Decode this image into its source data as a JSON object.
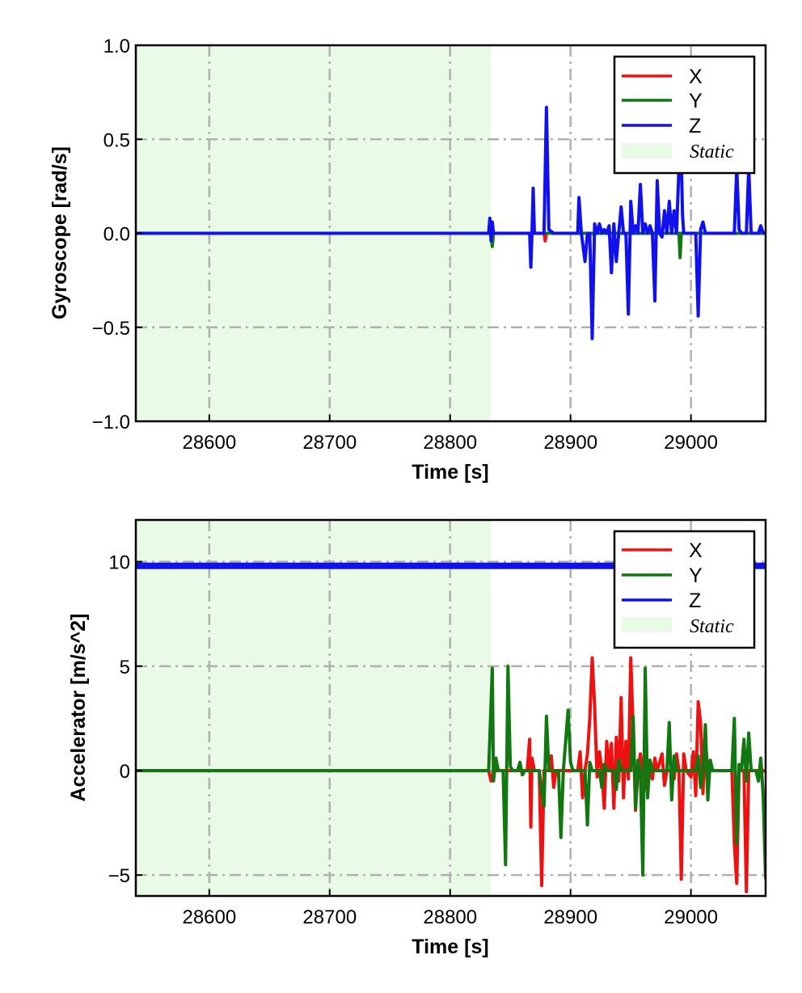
{
  "colors": {
    "X": "#ee1111",
    "Y": "#117711",
    "Z": "#1111ee",
    "static_fill": "#e9fbe6",
    "grid": "#b0b0b0"
  },
  "chart_data": [
    {
      "type": "line",
      "xlabel": "Time [s]",
      "ylabel": "Gyroscope [rad/s]",
      "xlim": [
        28539,
        29062
      ],
      "ylim": [
        -1.0,
        1.0
      ],
      "xticks": [
        28600,
        28700,
        28800,
        28900,
        29000
      ],
      "xtick_labels": [
        "28600",
        "28700",
        "28800",
        "28900",
        "29000"
      ],
      "yticks": [
        1.0,
        0.5,
        0.0,
        -0.5,
        -1.0
      ],
      "ytick_labels": [
        "1.0",
        "0.5",
        "0.0",
        "−0.5",
        "−1.0"
      ],
      "grid": true,
      "legend_position": "top-right",
      "static_region": {
        "label": "Static",
        "x": [
          28539,
          28834
        ]
      },
      "series": [
        {
          "name": "X",
          "points": [
            [
              28539,
              0
            ],
            [
              28833,
              0
            ],
            [
              28834,
              0.03
            ],
            [
              28835,
              -0.05
            ],
            [
              28836,
              0
            ],
            [
              28878,
              0
            ],
            [
              28879,
              -0.04
            ],
            [
              28880,
              0
            ],
            [
              29062,
              0
            ]
          ]
        },
        {
          "name": "Y",
          "points": [
            [
              28539,
              0
            ],
            [
              28834,
              0
            ],
            [
              28835,
              -0.07
            ],
            [
              28836,
              0
            ],
            [
              28990,
              0
            ],
            [
              28991,
              -0.13
            ],
            [
              28992,
              0
            ],
            [
              29062,
              0
            ]
          ]
        },
        {
          "name": "Z",
          "points": [
            [
              28539,
              0
            ],
            [
              28832,
              0
            ],
            [
              28833,
              0.08
            ],
            [
              28834,
              -0.04
            ],
            [
              28835,
              0.06
            ],
            [
              28836,
              0
            ],
            [
              28866,
              0
            ],
            [
              28867,
              -0.18
            ],
            [
              28868,
              0
            ],
            [
              28869,
              0.24
            ],
            [
              28870,
              0
            ],
            [
              28878,
              0
            ],
            [
              28880,
              0.67
            ],
            [
              28882,
              0.02
            ],
            [
              28886,
              0
            ],
            [
              28906,
              0
            ],
            [
              28907,
              0.19
            ],
            [
              28909,
              0
            ],
            [
              28912,
              -0.15
            ],
            [
              28914,
              0
            ],
            [
              28916,
              0
            ],
            [
              28918,
              -0.56
            ],
            [
              28920,
              0.05
            ],
            [
              28922,
              0
            ],
            [
              28924,
              0.05
            ],
            [
              28926,
              0
            ],
            [
              28928,
              0.02
            ],
            [
              28930,
              0
            ],
            [
              28932,
              0.04
            ],
            [
              28934,
              -0.21
            ],
            [
              28936,
              0.05
            ],
            [
              28938,
              -0.15
            ],
            [
              28940,
              0
            ],
            [
              28942,
              0.14
            ],
            [
              28944,
              0
            ],
            [
              28946,
              0
            ],
            [
              28948,
              -0.43
            ],
            [
              28950,
              0.17
            ],
            [
              28952,
              0
            ],
            [
              28954,
              0.04
            ],
            [
              28956,
              0
            ],
            [
              28958,
              0.26
            ],
            [
              28960,
              0
            ],
            [
              28962,
              0.05
            ],
            [
              28964,
              0
            ],
            [
              28966,
              0.04
            ],
            [
              28968,
              0
            ],
            [
              28970,
              -0.36
            ],
            [
              28972,
              0.28
            ],
            [
              28974,
              0
            ],
            [
              28976,
              -0.02
            ],
            [
              28978,
              0.12
            ],
            [
              28980,
              0
            ],
            [
              28982,
              0.17
            ],
            [
              28984,
              0
            ],
            [
              28986,
              0.12
            ],
            [
              28988,
              0
            ],
            [
              28990,
              0.35
            ],
            [
              28992,
              0.4
            ],
            [
              28993,
              0.1
            ],
            [
              28994,
              0
            ],
            [
              29002,
              0
            ],
            [
              29004,
              0
            ],
            [
              29006,
              -0.44
            ],
            [
              29008,
              0.02
            ],
            [
              29010,
              0.06
            ],
            [
              29012,
              0
            ],
            [
              29036,
              0
            ],
            [
              29038,
              0.35
            ],
            [
              29040,
              0.02
            ],
            [
              29042,
              0
            ],
            [
              29046,
              0
            ],
            [
              29048,
              0.35
            ],
            [
              29050,
              0
            ],
            [
              29056,
              0
            ],
            [
              29058,
              0.04
            ],
            [
              29060,
              0
            ],
            [
              29062,
              0
            ]
          ]
        }
      ]
    },
    {
      "type": "line",
      "xlabel": "Time [s]",
      "ylabel": "Accelerator [m/s^2]",
      "xlim": [
        28539,
        29062
      ],
      "ylim": [
        -6,
        12
      ],
      "xticks": [
        28600,
        28700,
        28800,
        28900,
        29000
      ],
      "xtick_labels": [
        "28600",
        "28700",
        "28800",
        "28900",
        "29000"
      ],
      "yticks": [
        10,
        5,
        0,
        -5
      ],
      "ytick_labels": [
        "10",
        "5",
        "0",
        "−5"
      ],
      "grid": true,
      "legend_position": "top-right",
      "static_region": {
        "label": "Static",
        "x": [
          28539,
          28834
        ]
      },
      "series": [
        {
          "name": "X",
          "points": [
            [
              28539,
              0
            ],
            [
              28832,
              0
            ],
            [
              28834,
              -0.5
            ],
            [
              28836,
              0
            ],
            [
              28864,
              0
            ],
            [
              28866,
              1.5
            ],
            [
              28867,
              -2.7
            ],
            [
              28868,
              0.6
            ],
            [
              28870,
              0
            ],
            [
              28874,
              0
            ],
            [
              28876,
              -5.5
            ],
            [
              28878,
              0
            ],
            [
              28882,
              0
            ],
            [
              28884,
              0.7
            ],
            [
              28886,
              -0.8
            ],
            [
              28888,
              0
            ],
            [
              28906,
              0
            ],
            [
              28908,
              0.9
            ],
            [
              28910,
              -1.3
            ],
            [
              28912,
              0
            ],
            [
              28914,
              0.8
            ],
            [
              28916,
              2.5
            ],
            [
              28918,
              5.4
            ],
            [
              28920,
              3.1
            ],
            [
              28922,
              -0.3
            ],
            [
              28924,
              0.9
            ],
            [
              28926,
              0
            ],
            [
              28928,
              -1.8
            ],
            [
              28930,
              1.4
            ],
            [
              28932,
              0.1
            ],
            [
              28934,
              1.3
            ],
            [
              28936,
              -1.8
            ],
            [
              28938,
              1.6
            ],
            [
              28940,
              -0.5
            ],
            [
              28942,
              3.5
            ],
            [
              28944,
              -1.3
            ],
            [
              28946,
              1.4
            ],
            [
              28948,
              -0.4
            ],
            [
              28950,
              5.4
            ],
            [
              28952,
              1.9
            ],
            [
              28954,
              -1.9
            ],
            [
              28956,
              0
            ],
            [
              28958,
              0.8
            ],
            [
              28960,
              0
            ],
            [
              28962,
              -0.9
            ],
            [
              28964,
              0.5
            ],
            [
              28966,
              0
            ],
            [
              28968,
              -0.4
            ],
            [
              28970,
              0.6
            ],
            [
              28972,
              0
            ],
            [
              28976,
              0.8
            ],
            [
              28978,
              -0.7
            ],
            [
              28980,
              0
            ],
            [
              28984,
              0
            ],
            [
              28986,
              -0.4
            ],
            [
              28988,
              0.8
            ],
            [
              28990,
              0
            ],
            [
              28992,
              -5.2
            ],
            [
              28994,
              0.8
            ],
            [
              28996,
              0
            ],
            [
              29000,
              -0.3
            ],
            [
              29002,
              0.9
            ],
            [
              29004,
              -1.2
            ],
            [
              29006,
              3.3
            ],
            [
              29008,
              2.3
            ],
            [
              29010,
              -1.1
            ],
            [
              29012,
              1.5
            ],
            [
              29014,
              0
            ],
            [
              29034,
              0
            ],
            [
              29036,
              -3.5
            ],
            [
              29038,
              -5.4
            ],
            [
              29040,
              0
            ],
            [
              29044,
              0
            ],
            [
              29046,
              -5.8
            ],
            [
              29048,
              0
            ],
            [
              29056,
              0
            ],
            [
              29058,
              -0.2
            ],
            [
              29060,
              0
            ],
            [
              29062,
              0
            ]
          ]
        },
        {
          "name": "Y",
          "points": [
            [
              28539,
              0
            ],
            [
              28832,
              0
            ],
            [
              28834,
              3.2
            ],
            [
              28835,
              4.9
            ],
            [
              28836,
              -0.5
            ],
            [
              28838,
              0.6
            ],
            [
              28840,
              0
            ],
            [
              28844,
              0
            ],
            [
              28846,
              -4.5
            ],
            [
              28848,
              5.0
            ],
            [
              28850,
              0.2
            ],
            [
              28852,
              0
            ],
            [
              28856,
              0
            ],
            [
              28858,
              0.4
            ],
            [
              28860,
              -0.2
            ],
            [
              28862,
              0
            ],
            [
              28874,
              0
            ],
            [
              28876,
              -1.0
            ],
            [
              28878,
              -1.7
            ],
            [
              28880,
              2.6
            ],
            [
              28882,
              0
            ],
            [
              28890,
              0
            ],
            [
              28892,
              -3.2
            ],
            [
              28894,
              0
            ],
            [
              28898,
              2.9
            ],
            [
              28900,
              0.4
            ],
            [
              28902,
              0
            ],
            [
              28912,
              0
            ],
            [
              28914,
              -2.6
            ],
            [
              28916,
              0.4
            ],
            [
              28918,
              0
            ],
            [
              28924,
              0
            ],
            [
              28926,
              -0.8
            ],
            [
              28928,
              0.3
            ],
            [
              28930,
              0
            ],
            [
              28936,
              0
            ],
            [
              28938,
              -0.9
            ],
            [
              28940,
              0.5
            ],
            [
              28942,
              0
            ],
            [
              28950,
              0
            ],
            [
              28952,
              2.6
            ],
            [
              28954,
              -1.8
            ],
            [
              28956,
              0.5
            ],
            [
              28958,
              0
            ],
            [
              28960,
              -5.0
            ],
            [
              28962,
              4.9
            ],
            [
              28964,
              -1.3
            ],
            [
              28966,
              0.5
            ],
            [
              28968,
              0
            ],
            [
              28980,
              0
            ],
            [
              28982,
              2.3
            ],
            [
              28984,
              -1.4
            ],
            [
              28986,
              0.7
            ],
            [
              28988,
              0
            ],
            [
              29004,
              0
            ],
            [
              29006,
              0.7
            ],
            [
              29008,
              -0.8
            ],
            [
              29010,
              0
            ],
            [
              29012,
              2.2
            ],
            [
              29014,
              -1.4
            ],
            [
              29016,
              0.5
            ],
            [
              29018,
              0
            ],
            [
              29034,
              0
            ],
            [
              29036,
              2.5
            ],
            [
              29038,
              -3.5
            ],
            [
              29040,
              0.3
            ],
            [
              29042,
              0
            ],
            [
              29044,
              1.5
            ],
            [
              29046,
              -0.5
            ],
            [
              29048,
              1.8
            ],
            [
              29050,
              0
            ],
            [
              29054,
              0
            ],
            [
              29056,
              -0.5
            ],
            [
              29058,
              0.6
            ],
            [
              29060,
              -1.2
            ],
            [
              29062,
              -5.2
            ]
          ]
        },
        {
          "name": "Z",
          "points": [
            [
              28539,
              9.8
            ],
            [
              29062,
              9.8
            ]
          ]
        }
      ]
    }
  ]
}
